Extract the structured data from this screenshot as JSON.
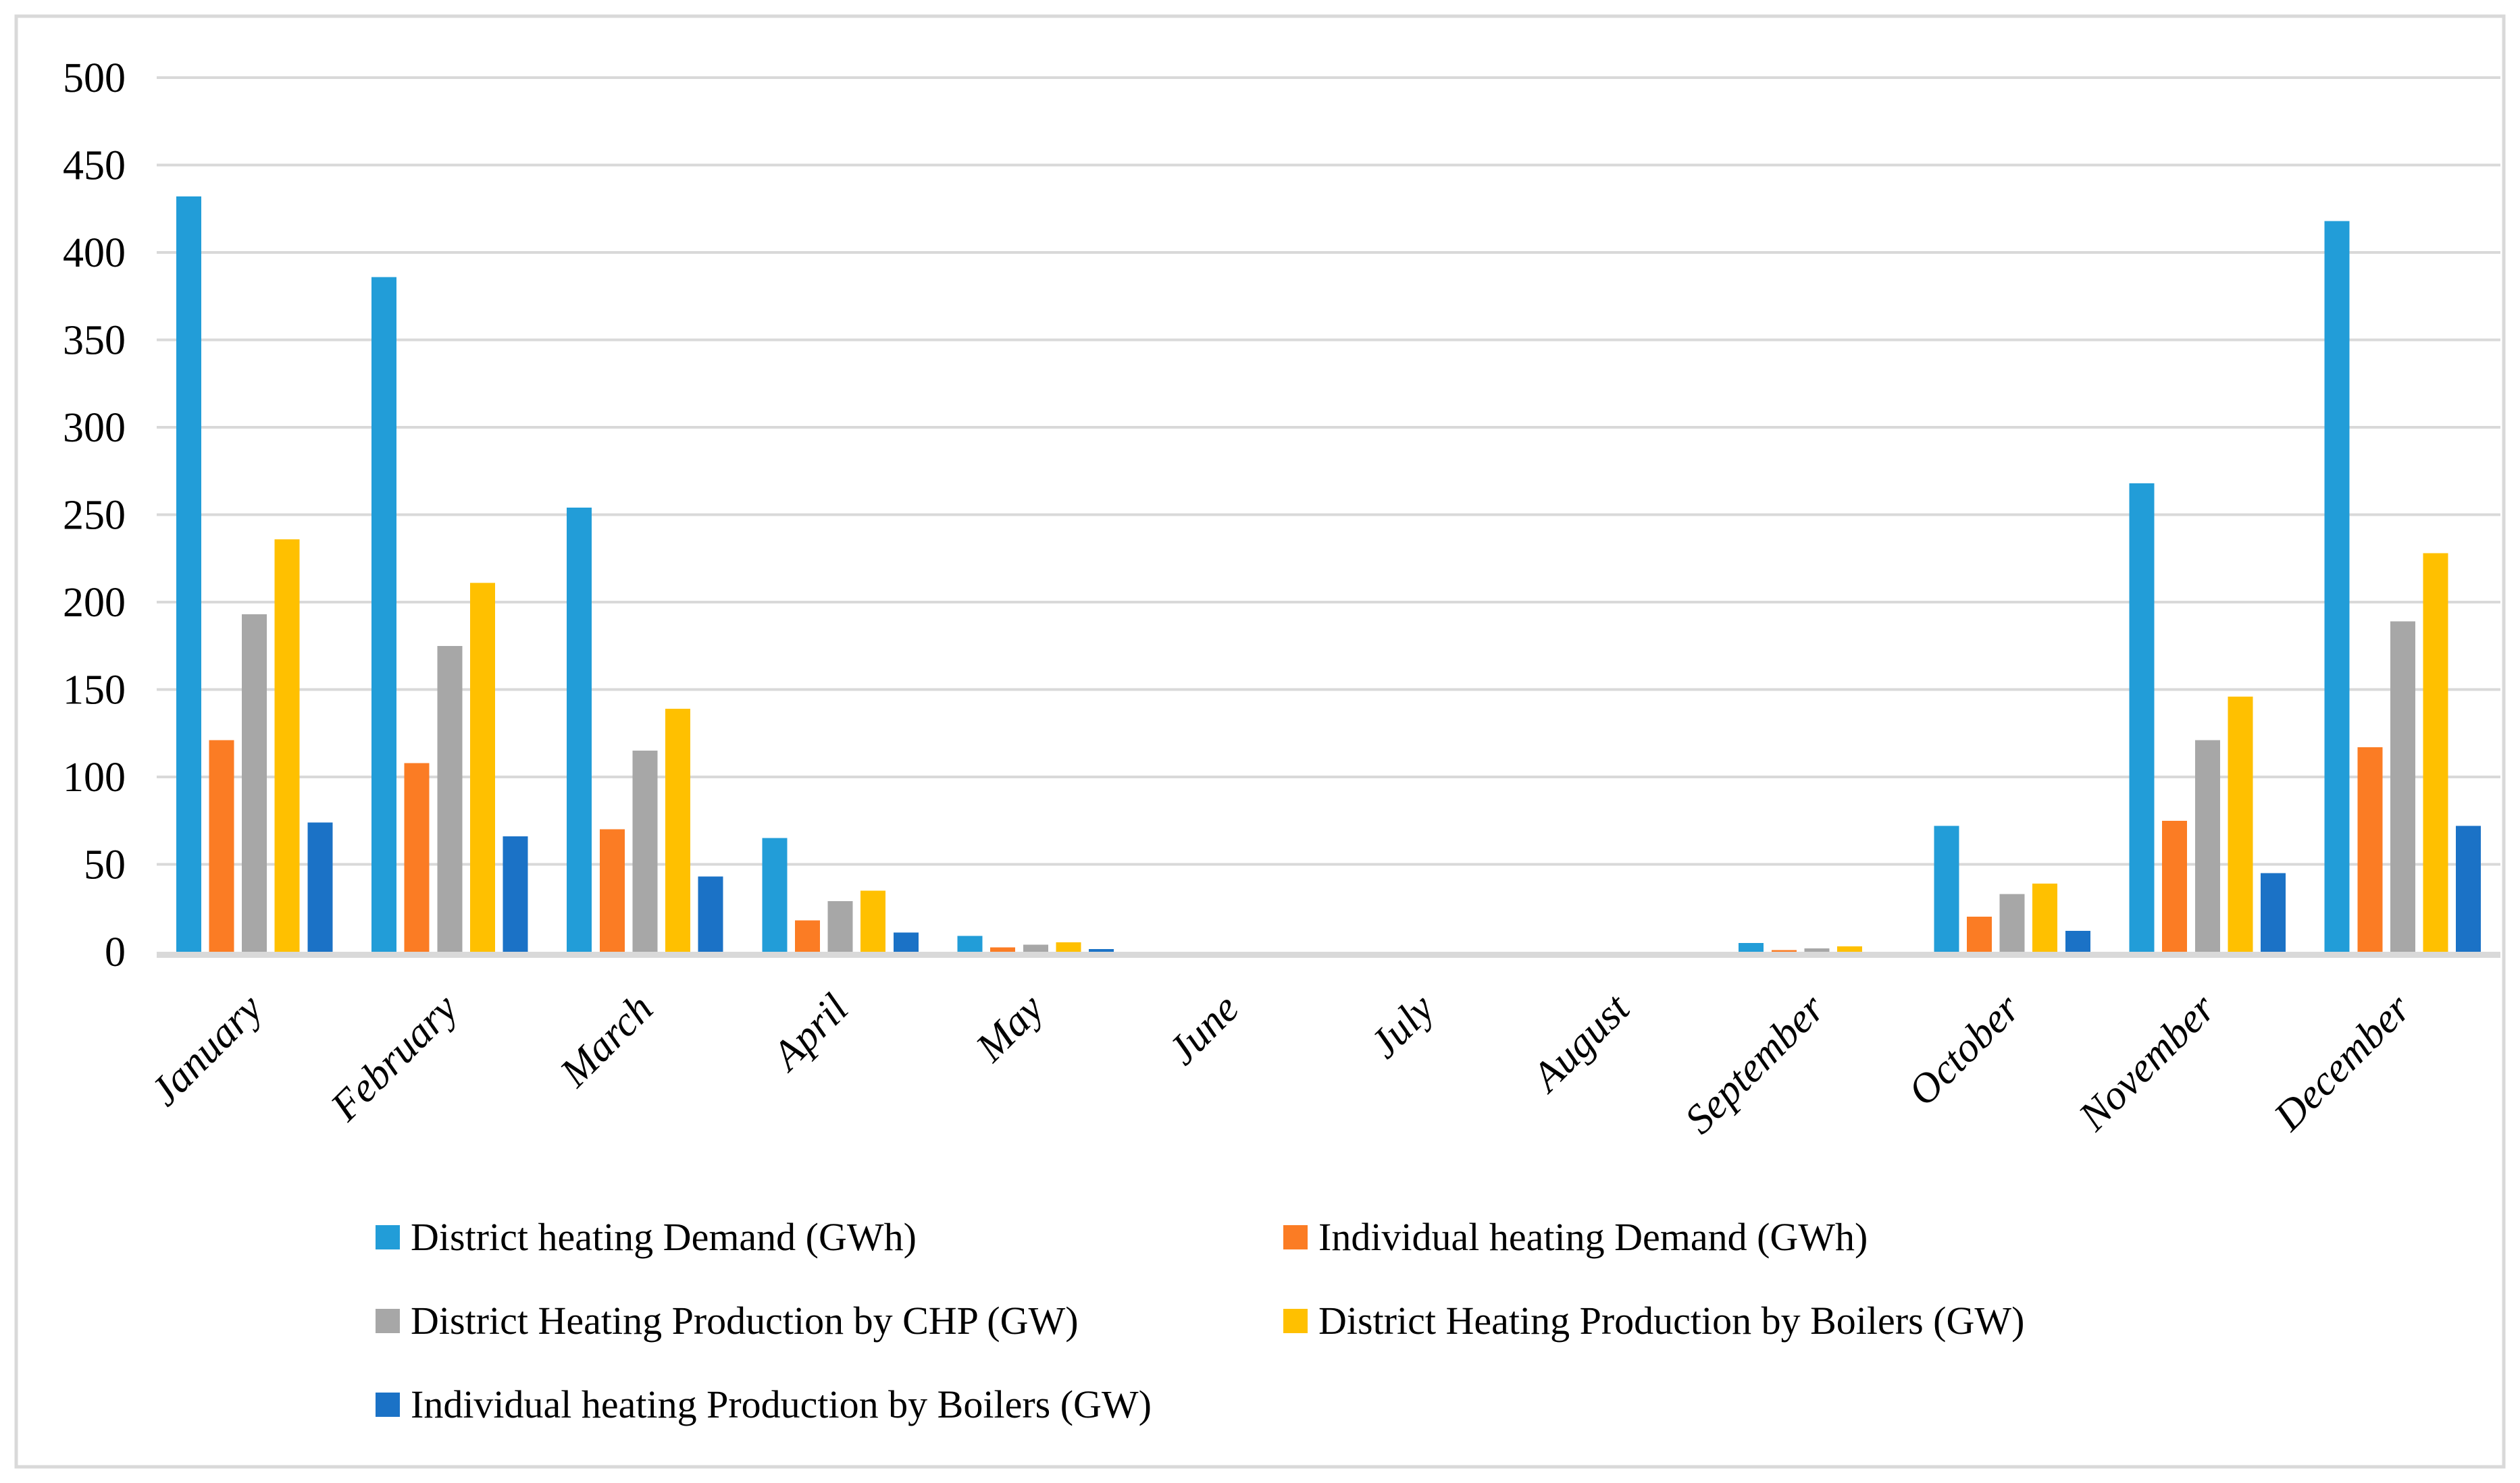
{
  "chart_data": {
    "type": "bar",
    "title": "",
    "xlabel": "",
    "ylabel": "",
    "categories": [
      "January",
      "February",
      "March",
      "April",
      "May",
      "June",
      "July",
      "August",
      "September",
      "October",
      "November",
      "December"
    ],
    "series": [
      {
        "name": "District heating Demand (GWh)",
        "color": "#229DD8",
        "values": [
          432,
          386,
          254,
          65,
          9,
          0,
          0,
          0,
          5,
          72,
          268,
          418
        ]
      },
      {
        "name": "Individual heating Demand (GWh)",
        "color": "#FB7C24",
        "values": [
          121,
          108,
          70,
          18,
          2.5,
          0,
          0,
          0,
          1,
          20,
          75,
          117
        ]
      },
      {
        "name": "District Heating Production by CHP (GW)",
        "color": "#A7A7A7",
        "values": [
          193,
          175,
          115,
          29,
          4,
          0,
          0,
          0,
          2,
          33,
          121,
          189
        ]
      },
      {
        "name": "District Heating Production by Boilers (GW)",
        "color": "#FFC000",
        "values": [
          236,
          211,
          139,
          35,
          5.5,
          0,
          0,
          0,
          3,
          39,
          146,
          228
        ]
      },
      {
        "name": "Individual heating Production by Boilers (GW)",
        "color": "#1B72C6",
        "values": [
          74,
          66,
          43,
          11,
          1.5,
          0,
          0,
          0,
          0,
          12,
          45,
          72
        ]
      }
    ],
    "ylim": [
      0,
      500
    ],
    "ytick_step": 50,
    "yticks": [
      "0",
      "50",
      "100",
      "150",
      "200",
      "250",
      "300",
      "350",
      "400",
      "450",
      "500"
    ],
    "grid": true,
    "gridline_color": "#D9D9D9",
    "axis_line_color": "#D9D9D9",
    "border_color": "#D9D9D9",
    "tick_label_color": "#000000",
    "legend_position": "bottom"
  }
}
